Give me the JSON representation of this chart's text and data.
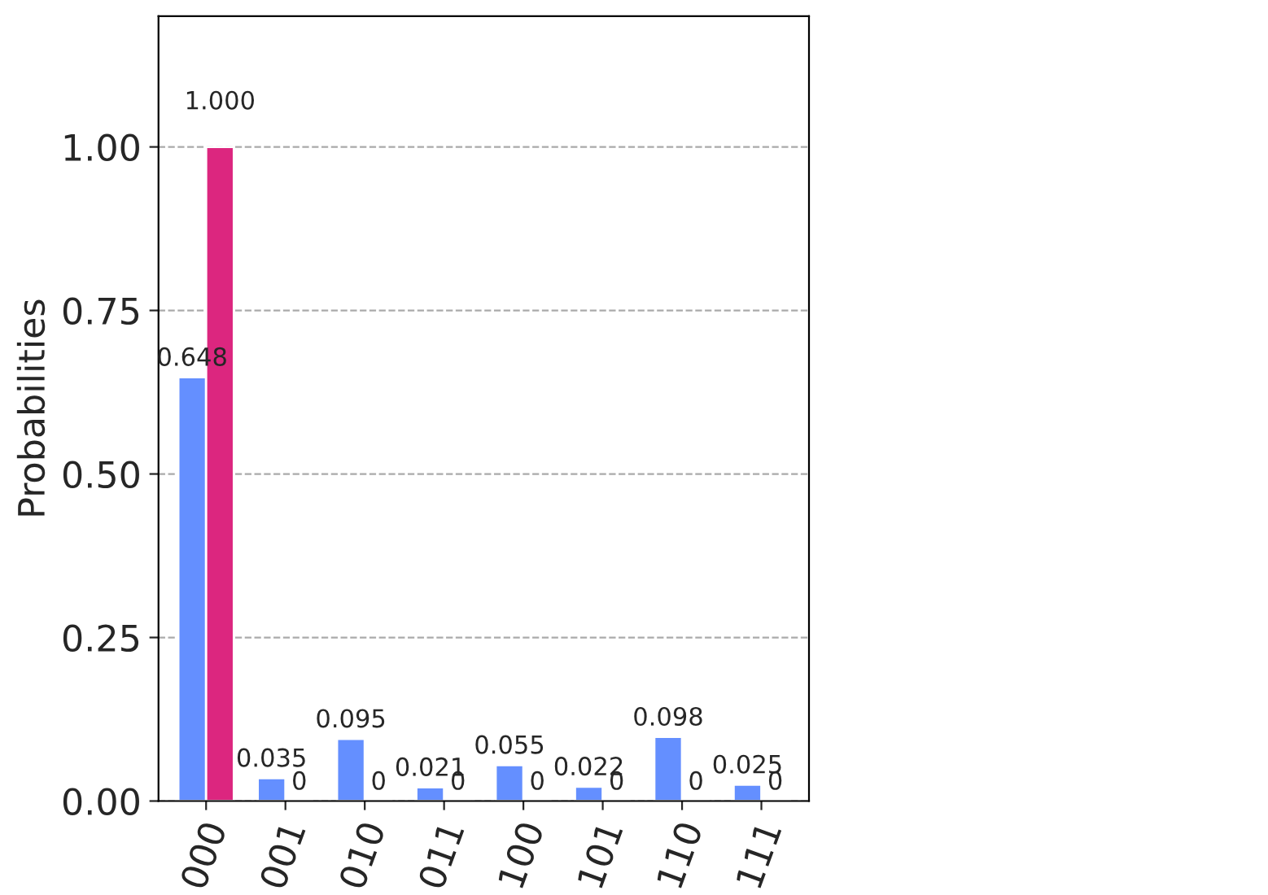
{
  "chart_data": {
    "type": "bar",
    "ylabel": "Probabilities",
    "categories": [
      "000",
      "001",
      "010",
      "011",
      "100",
      "101",
      "110",
      "111"
    ],
    "series": [
      {
        "color": "#648fff",
        "values": [
          0.648,
          0.035,
          0.095,
          0.021,
          0.055,
          0.022,
          0.098,
          0.025
        ],
        "value_labels": [
          "0.648",
          "0.035",
          "0.095",
          "0.021",
          "0.055",
          "0.022",
          "0.098",
          "0.025"
        ]
      },
      {
        "color": "#dc267f",
        "values": [
          1,
          0,
          0,
          0,
          0,
          0,
          0,
          0
        ],
        "value_labels": [
          "1.000",
          "0",
          "0",
          "0",
          "0",
          "0",
          "0",
          "0"
        ]
      }
    ],
    "ylim": [
      0,
      1.2
    ],
    "yticks": [
      {
        "value": 0,
        "label": "0.00"
      },
      {
        "value": 0.25,
        "label": "0.25"
      },
      {
        "value": 0.5,
        "label": "0.50"
      },
      {
        "value": 0.75,
        "label": "0.75"
      },
      {
        "value": 1,
        "label": "1.00"
      }
    ],
    "grid": "y",
    "line_style": "dashed"
  }
}
